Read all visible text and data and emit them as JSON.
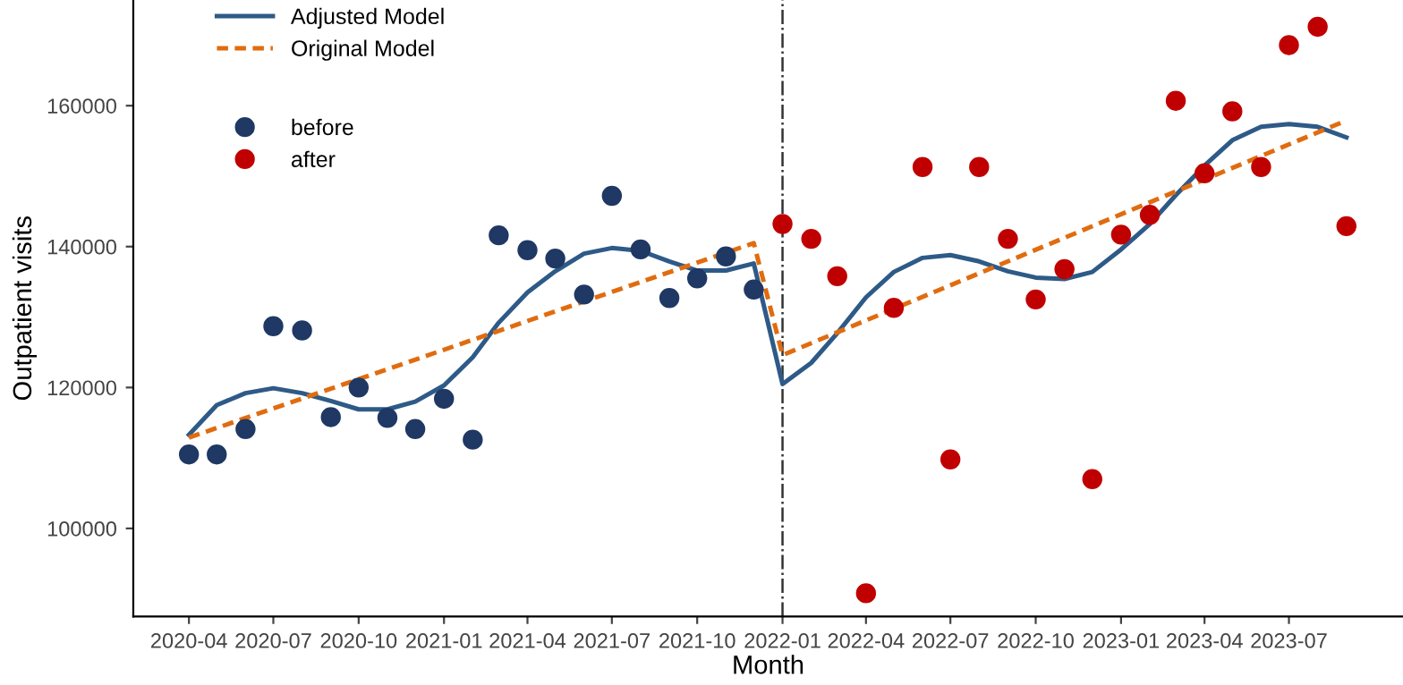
{
  "chart_data": {
    "type": "scatter",
    "xlabel": "Month",
    "ylabel": "Outpatient visits",
    "xlim": [
      "2020-02",
      "2023-11"
    ],
    "ylim": [
      87500,
      175000
    ],
    "xticks": [
      {
        "value": "2020-04",
        "label": "2020-04"
      },
      {
        "value": "2020-07",
        "label": "2020-07"
      },
      {
        "value": "2020-10",
        "label": "2020-10"
      },
      {
        "value": "2021-01",
        "label": "2021-01"
      },
      {
        "value": "2021-04",
        "label": "2021-04"
      },
      {
        "value": "2021-07",
        "label": "2021-07"
      },
      {
        "value": "2021-10",
        "label": "2021-10"
      },
      {
        "value": "2022-01",
        "label": "2022-01"
      },
      {
        "value": "2022-04",
        "label": "2022-04"
      },
      {
        "value": "2022-07",
        "label": "2022-07"
      },
      {
        "value": "2022-10",
        "label": "2022-10"
      },
      {
        "value": "2023-01",
        "label": "2023-01"
      },
      {
        "value": "2023-04",
        "label": "2023-04"
      },
      {
        "value": "2023-07",
        "label": "2023-07"
      }
    ],
    "yticks": [
      100000,
      120000,
      140000,
      160000
    ],
    "grid": false,
    "legend": "top left",
    "ref_lines": [
      {
        "axis": "x",
        "value": "2022-01",
        "label": null,
        "color": "#333333",
        "line_style": "dashdot"
      }
    ],
    "series": [
      {
        "name": "Adjusted Model",
        "type": "line",
        "color": "#2e5a87",
        "line_style": "solid",
        "marker": "none",
        "x": [
          "2020-04",
          "2020-05",
          "2020-06",
          "2020-07",
          "2020-08",
          "2020-09",
          "2020-10",
          "2020-11",
          "2020-12",
          "2021-01",
          "2021-02",
          "2021-03",
          "2021-04",
          "2021-05",
          "2021-06",
          "2021-07",
          "2021-08",
          "2021-09",
          "2021-10",
          "2021-11",
          "2021-12",
          "2022-01",
          "2022-02",
          "2022-03",
          "2022-04",
          "2022-05",
          "2022-06",
          "2022-07",
          "2022-08",
          "2022-09",
          "2022-10",
          "2022-11",
          "2022-12",
          "2023-01",
          "2023-02",
          "2023-03",
          "2023-04",
          "2023-05",
          "2023-06",
          "2023-07",
          "2023-08",
          "2023-09"
        ],
        "values": [
          113300,
          117500,
          119200,
          119900,
          119200,
          118100,
          116900,
          116900,
          118000,
          120300,
          124300,
          129200,
          133500,
          136500,
          139000,
          139800,
          139400,
          137900,
          136600,
          136600,
          137600,
          120500,
          123500,
          127700,
          132800,
          136400,
          138400,
          138800,
          137900,
          136500,
          135600,
          135400,
          136400,
          139600,
          143200,
          147300,
          151500,
          155100,
          157000,
          157400,
          157000,
          155500
        ]
      },
      {
        "name": "Original Model",
        "type": "line",
        "color": "#e06c10",
        "line_style": "dashed",
        "marker": "none",
        "x": [
          "2020-04",
          "2021-12",
          "2022-01",
          "2023-09"
        ],
        "values": [
          112900,
          140500,
          124600,
          157900
        ]
      },
      {
        "name": "before",
        "color": "#1f3864",
        "marker": "circle",
        "x": [
          "2020-04",
          "2020-05",
          "2020-06",
          "2020-07",
          "2020-08",
          "2020-09",
          "2020-10",
          "2020-11",
          "2020-12",
          "2021-01",
          "2021-02",
          "2021-03",
          "2021-04",
          "2021-05",
          "2021-06",
          "2021-07",
          "2021-08",
          "2021-09",
          "2021-10",
          "2021-11",
          "2021-12"
        ],
        "values": [
          110500,
          110500,
          114100,
          128700,
          128100,
          115800,
          120000,
          115700,
          114100,
          118400,
          112600,
          141600,
          139500,
          138300,
          133200,
          147200,
          139600,
          132700,
          135500,
          138600,
          133900
        ]
      },
      {
        "name": "after",
        "color": "#c00000",
        "marker": "circle",
        "x": [
          "2022-01",
          "2022-02",
          "2022-03",
          "2022-04",
          "2022-05",
          "2022-06",
          "2022-07",
          "2022-08",
          "2022-09",
          "2022-10",
          "2022-11",
          "2022-12",
          "2023-01",
          "2023-02",
          "2023-03",
          "2023-04",
          "2023-05",
          "2023-06",
          "2023-07",
          "2023-08",
          "2023-09"
        ],
        "values": [
          143200,
          141100,
          135800,
          90800,
          131300,
          151300,
          109800,
          151300,
          141100,
          132500,
          136800,
          107000,
          141700,
          144500,
          160700,
          150400,
          159200,
          151300,
          168600,
          171200,
          142900
        ]
      }
    ]
  }
}
